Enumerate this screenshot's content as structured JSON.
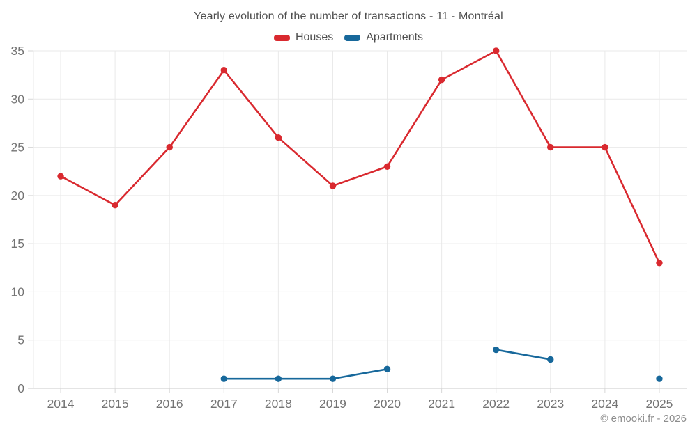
{
  "chart_data": {
    "type": "line",
    "title": "Yearly evolution of the number of transactions - 11 - Montréal",
    "categories": [
      "2014",
      "2015",
      "2016",
      "2017",
      "2018",
      "2019",
      "2020",
      "2021",
      "2022",
      "2023",
      "2024",
      "2025"
    ],
    "series": [
      {
        "name": "Houses",
        "color": "#d9292f",
        "values": [
          22,
          19,
          25,
          33,
          26,
          21,
          23,
          32,
          35,
          25,
          25,
          13
        ]
      },
      {
        "name": "Apartments",
        "color": "#17689b",
        "values": [
          null,
          null,
          null,
          1,
          1,
          1,
          2,
          null,
          4,
          3,
          null,
          1
        ]
      }
    ],
    "ylim": [
      0,
      35
    ],
    "yticks": [
      0,
      5,
      10,
      15,
      20,
      25,
      30,
      35
    ],
    "grid": true,
    "legend_position": "top",
    "axis_label_color": "#747474",
    "gridline_color": "#e9e9e9",
    "axis_line_color": "#c9c9c9",
    "tick_mark_color": "#d7d7d7"
  },
  "footer": {
    "copyright": "© emooki.fr - 2026"
  }
}
